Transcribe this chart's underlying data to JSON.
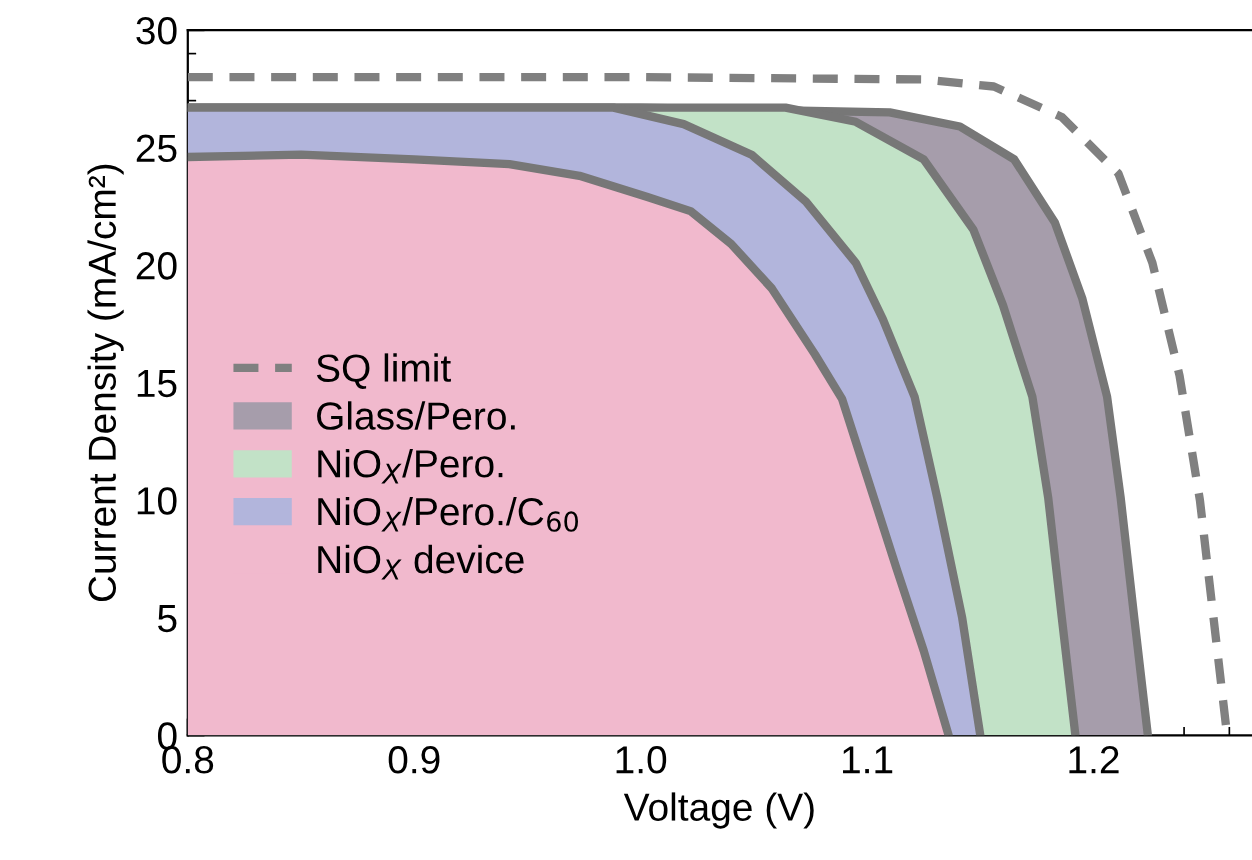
{
  "chart_data": {
    "type": "area",
    "xlabel": "Voltage (V)",
    "ylabel": "Current Density (mA/cm²)",
    "xlim": [
      0.8,
      1.27
    ],
    "ylim": [
      0,
      30
    ],
    "xticks": [
      {
        "value": 0.8,
        "label": "0.8"
      },
      {
        "value": 0.9,
        "label": "0.9"
      },
      {
        "value": 1.0,
        "label": "1.0"
      },
      {
        "value": 1.1,
        "label": "1.1"
      },
      {
        "value": 1.2,
        "label": "1.2"
      }
    ],
    "yticks": [
      0,
      5,
      10,
      15,
      20,
      25,
      30
    ],
    "grid": false,
    "legend": "left",
    "series": [
      {
        "name": "SQ limit",
        "type": "line",
        "line_style": "dashed",
        "color": "#808080",
        "x": [
          0.8,
          1.0,
          1.125,
          1.156,
          1.186,
          1.211,
          1.226,
          1.238,
          1.247,
          1.253,
          1.259
        ],
        "values": [
          28.0,
          28.0,
          27.9,
          27.6,
          26.3,
          23.9,
          20.1,
          15.3,
          10.0,
          5.0,
          0
        ]
      },
      {
        "name": "Glass/Pero.",
        "color": "#a69dab",
        "x": [
          0.8,
          1.0,
          1.11,
          1.141,
          1.165,
          1.183,
          1.195,
          1.206,
          1.212,
          1.218,
          1.224
        ],
        "values": [
          26.7,
          26.7,
          26.5,
          25.9,
          24.5,
          21.8,
          18.6,
          14.4,
          10.1,
          5.0,
          0
        ]
      },
      {
        "name": "NiO$_{X}$/Pero.",
        "color": "#c2e2c7",
        "x": [
          0.8,
          1.0,
          1.064,
          1.095,
          1.125,
          1.147,
          1.16,
          1.173,
          1.18,
          1.186,
          1.192
        ],
        "values": [
          26.7,
          26.7,
          26.7,
          26.1,
          24.5,
          21.5,
          18.3,
          14.4,
          10.1,
          5.0,
          0
        ]
      },
      {
        "name": "NiO$_{X}$/Pero./C$_{60}$",
        "color": "#b2b5dc",
        "x": [
          0.8,
          0.9,
          0.988,
          1.019,
          1.049,
          1.073,
          1.095,
          1.107,
          1.121,
          1.131,
          1.142,
          1.15
        ],
        "values": [
          26.7,
          26.7,
          26.7,
          26.0,
          24.7,
          22.7,
          20.1,
          17.7,
          14.4,
          10.1,
          5.0,
          0
        ]
      },
      {
        "name": "NiO$_{X}$ device",
        "color": "#f1b9cd",
        "x": [
          0.8,
          0.85,
          0.9,
          0.942,
          0.973,
          1.003,
          1.022,
          1.04,
          1.058,
          1.077,
          1.089,
          1.098,
          1.113,
          1.125,
          1.136
        ],
        "values": [
          24.6,
          24.7,
          24.5,
          24.3,
          23.8,
          22.9,
          22.3,
          20.9,
          19.0,
          16.2,
          14.3,
          11.6,
          7.1,
          3.6,
          0
        ]
      }
    ]
  }
}
